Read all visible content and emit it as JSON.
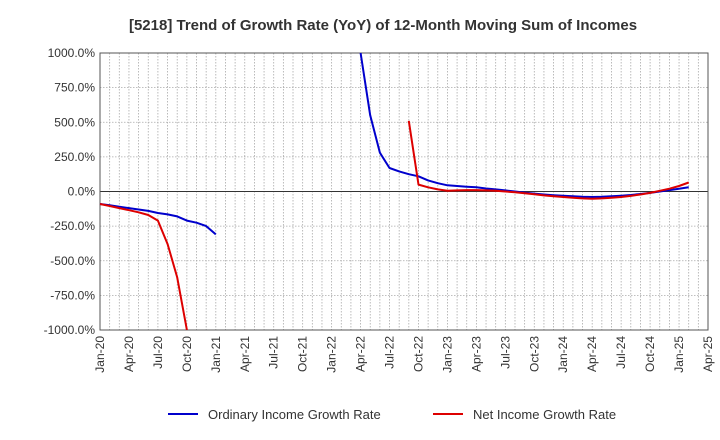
{
  "chart_data": {
    "type": "line",
    "title": "[5218]  Trend of Growth Rate (YoY) of 12-Month Moving Sum of Incomes",
    "xlabel": "",
    "ylabel": "",
    "ylim": [
      -1000,
      1000
    ],
    "y_ticks": [
      1000,
      750,
      500,
      250,
      0,
      -250,
      -500,
      -750,
      -1000
    ],
    "y_tick_labels": [
      "1000.0%",
      "750.0%",
      "500.0%",
      "250.0%",
      "0.0%",
      "-250.0%",
      "-500.0%",
      "-750.0%",
      "-1000.0%"
    ],
    "x_tick_labels": [
      "Jan-20",
      "Apr-20",
      "Jul-20",
      "Oct-20",
      "Jan-21",
      "Apr-21",
      "Jul-21",
      "Oct-21",
      "Jan-22",
      "Apr-22",
      "Jul-22",
      "Oct-22",
      "Jan-23",
      "Apr-23",
      "Jul-23",
      "Oct-23",
      "Jan-24",
      "Apr-24",
      "Jul-24",
      "Oct-24",
      "Jan-25",
      "Apr-25"
    ],
    "grid": true,
    "legend_position": "bottom",
    "series": [
      {
        "name": "Ordinary Income Growth Rate",
        "color": "#0000cc",
        "segments": [
          [
            [
              "2020-01",
              -90
            ],
            [
              "2020-02",
              -100
            ],
            [
              "2020-03",
              -110
            ],
            [
              "2020-04",
              -120
            ],
            [
              "2020-05",
              -130
            ],
            [
              "2020-06",
              -140
            ],
            [
              "2020-07",
              -155
            ],
            [
              "2020-08",
              -165
            ],
            [
              "2020-09",
              -180
            ],
            [
              "2020-10",
              -210
            ],
            [
              "2020-11",
              -225
            ],
            [
              "2020-12",
              -250
            ],
            [
              "2021-01",
              -310
            ]
          ],
          [
            [
              "2022-04",
              1000
            ],
            [
              "2022-05",
              550
            ],
            [
              "2022-06",
              280
            ],
            [
              "2022-07",
              170
            ],
            [
              "2022-08",
              145
            ],
            [
              "2022-09",
              125
            ],
            [
              "2022-10",
              110
            ],
            [
              "2022-11",
              80
            ],
            [
              "2022-12",
              60
            ],
            [
              "2023-01",
              45
            ],
            [
              "2023-02",
              40
            ],
            [
              "2023-03",
              35
            ],
            [
              "2023-04",
              30
            ],
            [
              "2023-05",
              22
            ],
            [
              "2023-06",
              15
            ],
            [
              "2023-07",
              8
            ],
            [
              "2023-08",
              0
            ],
            [
              "2023-09",
              -8
            ],
            [
              "2023-10",
              -15
            ],
            [
              "2023-11",
              -22
            ],
            [
              "2023-12",
              -27
            ],
            [
              "2024-01",
              -30
            ],
            [
              "2024-02",
              -35
            ],
            [
              "2024-03",
              -38
            ],
            [
              "2024-04",
              -40
            ],
            [
              "2024-05",
              -38
            ],
            [
              "2024-06",
              -35
            ],
            [
              "2024-07",
              -30
            ],
            [
              "2024-08",
              -25
            ],
            [
              "2024-09",
              -18
            ],
            [
              "2024-10",
              -10
            ],
            [
              "2024-11",
              0
            ],
            [
              "2024-12",
              10
            ],
            [
              "2025-01",
              20
            ],
            [
              "2025-02",
              30
            ]
          ]
        ]
      },
      {
        "name": "Net Income Growth Rate",
        "color": "#dd0000",
        "segments": [
          [
            [
              "2020-01",
              -90
            ],
            [
              "2020-02",
              -105
            ],
            [
              "2020-03",
              -120
            ],
            [
              "2020-04",
              -135
            ],
            [
              "2020-05",
              -150
            ],
            [
              "2020-06",
              -170
            ],
            [
              "2020-07",
              -210
            ],
            [
              "2020-08",
              -380
            ],
            [
              "2020-09",
              -620
            ],
            [
              "2020-10",
              -1000
            ]
          ],
          [
            [
              "2022-09",
              510
            ],
            [
              "2022-10",
              50
            ],
            [
              "2022-11",
              30
            ],
            [
              "2022-12",
              15
            ],
            [
              "2023-01",
              5
            ],
            [
              "2023-02",
              8
            ],
            [
              "2023-03",
              10
            ],
            [
              "2023-04",
              10
            ],
            [
              "2023-05",
              8
            ],
            [
              "2023-06",
              5
            ],
            [
              "2023-07",
              0
            ],
            [
              "2023-08",
              -5
            ],
            [
              "2023-09",
              -12
            ],
            [
              "2023-10",
              -20
            ],
            [
              "2023-11",
              -28
            ],
            [
              "2023-12",
              -35
            ],
            [
              "2024-01",
              -40
            ],
            [
              "2024-02",
              -45
            ],
            [
              "2024-03",
              -50
            ],
            [
              "2024-04",
              -52
            ],
            [
              "2024-05",
              -50
            ],
            [
              "2024-06",
              -45
            ],
            [
              "2024-07",
              -40
            ],
            [
              "2024-08",
              -32
            ],
            [
              "2024-09",
              -22
            ],
            [
              "2024-10",
              -10
            ],
            [
              "2024-11",
              5
            ],
            [
              "2024-12",
              20
            ],
            [
              "2025-01",
              40
            ],
            [
              "2025-02",
              65
            ]
          ]
        ]
      }
    ]
  }
}
